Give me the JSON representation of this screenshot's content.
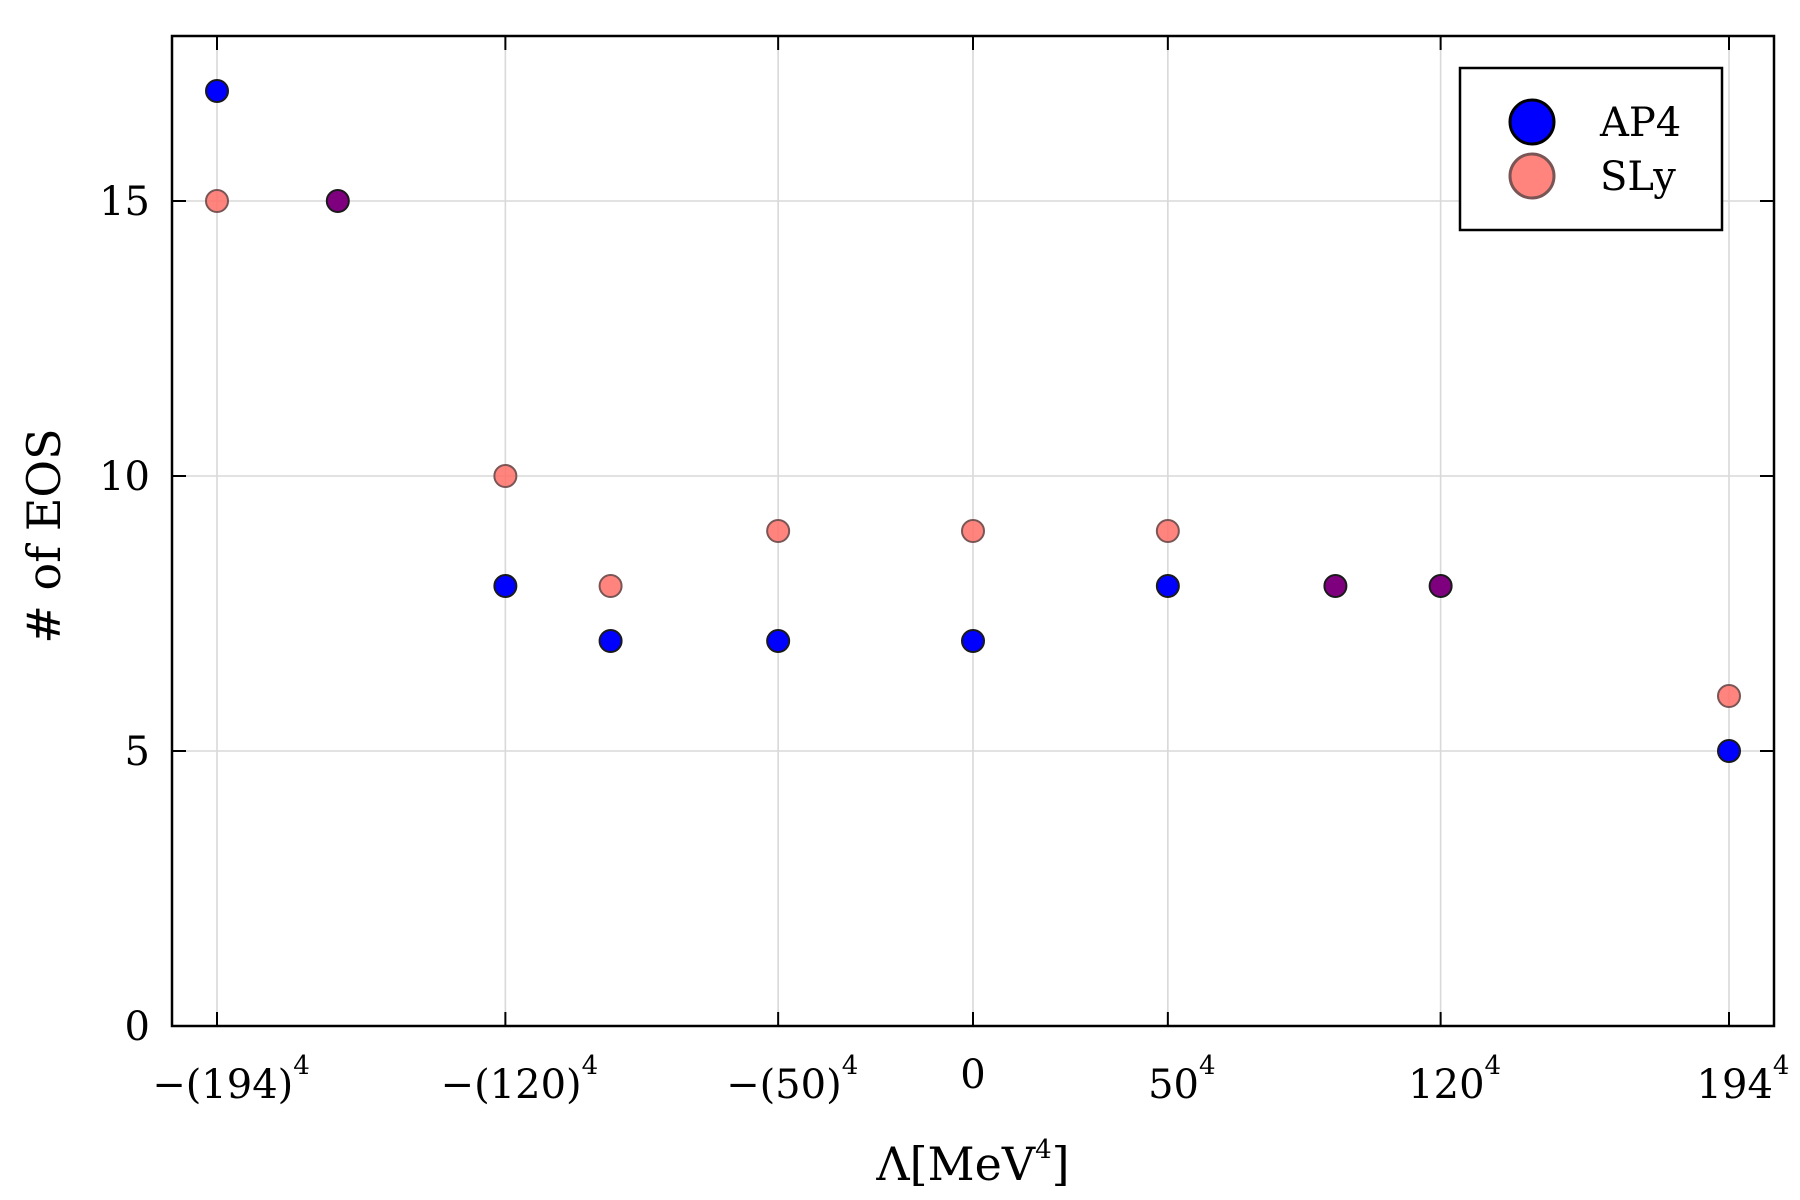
{
  "chart_data": {
    "type": "scatter",
    "title": "",
    "xlabel": "Λ[MeV",
    "xlabel_exponent": "4",
    "ylabel": "# of EOS",
    "y_ticks": [
      "0",
      "5",
      "10",
      "15"
    ],
    "y_tick_values": [
      0,
      5,
      10,
      15
    ],
    "x_ticks": [
      {
        "value": -1416468496,
        "base": "−(194)",
        "exponent": "4"
      },
      {
        "value": -207360000,
        "base": "−(120)",
        "exponent": "4"
      },
      {
        "value": -6250000,
        "base": "−(50)",
        "exponent": "4"
      },
      {
        "value": 0,
        "base": "0",
        "exponent": ""
      },
      {
        "value": 6250000,
        "base": "50",
        "exponent": "4"
      },
      {
        "value": 207360000,
        "base": "120",
        "exponent": "4"
      },
      {
        "value": 1416468496,
        "base": "194",
        "exponent": "4"
      }
    ],
    "x_scale": "fourth-root (signed)",
    "ylim": [
      0,
      18
    ],
    "grid": true,
    "legend_position": "top-right",
    "series": [
      {
        "name": "AP4",
        "color": "#0000ff",
        "x": [
          -1416468496,
          -207360000,
          -74805201,
          -6250000,
          0,
          6250000,
          1416468496
        ],
        "y": [
          17,
          8,
          7,
          7,
          7,
          8,
          5
        ]
      },
      {
        "name": "SLy",
        "color": "#ff6f66",
        "x": [
          -1416468496,
          -207360000,
          -74805201,
          -6250000,
          0,
          6250000,
          1416468496
        ],
        "y": [
          15,
          10,
          8,
          9,
          9,
          9,
          6
        ]
      },
      {
        "name": "",
        "color": "#7f007f",
        "x": [
          -705911761,
          74805201,
          207360000
        ],
        "y": [
          15,
          8,
          8
        ]
      }
    ]
  }
}
